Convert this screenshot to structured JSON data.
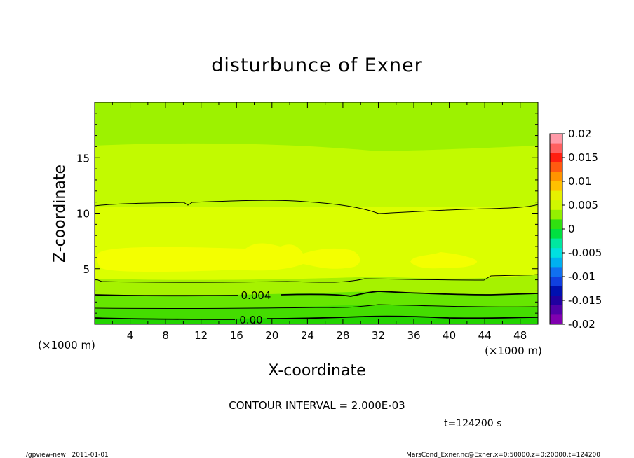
{
  "chart_data": {
    "type": "heatmap",
    "title": "disturbunce of Exner",
    "xlabel": "X-coordinate",
    "ylabel": "Z-coordinate",
    "x_unit": "(×1000 m)",
    "x_unit_right": "(×1000 m)",
    "xlim": [
      0,
      50
    ],
    "ylim": [
      0,
      20
    ],
    "xticks": [
      4,
      8,
      12,
      16,
      20,
      24,
      28,
      32,
      36,
      40,
      44,
      48
    ],
    "yticks": [
      5,
      10,
      15
    ],
    "contour_labels": [
      "0.004",
      "0.00"
    ],
    "contour_interval_text": "CONTOUR INTERVAL = 2.000E-03",
    "time_text": "t=124200 s",
    "footer_left": "./gpview-new   2011-01-01",
    "footer_right": "MarsCond_Exner.nc@Exner,x=0:50000,z=0:20000,t=124200",
    "colorbar": {
      "ticks": [
        "0.02",
        "0.015",
        "0.01",
        "0.005",
        "0",
        "-0.005",
        "-0.01",
        "-0.015",
        "-0.02"
      ],
      "range": [
        -0.02,
        0.02
      ],
      "bands": [
        "#ff9aa8",
        "#ff6060",
        "#ff1e10",
        "#ff5a10",
        "#ff9400",
        "#ffc000",
        "#e6f000",
        "#d0f800",
        "#94f000",
        "#30e010",
        "#00e040",
        "#00e8a0",
        "#00e0e0",
        "#00b0f0",
        "#1070f0",
        "#1040e0",
        "#0010b0",
        "#2000a0",
        "#5000a8",
        "#8000b0"
      ]
    },
    "levels": [
      {
        "zmin": 0,
        "zmax": 0.5,
        "value": 0.0,
        "color": "#33dd00"
      },
      {
        "zmin": 0.5,
        "zmax": 1.4,
        "value": 0.001,
        "color": "#55e600"
      },
      {
        "zmin": 1.4,
        "zmax": 2.6,
        "value": 0.002,
        "color": "#77ee00"
      },
      {
        "zmin": 2.6,
        "zmax": 3.8,
        "value": 0.003,
        "color": "#99f000"
      },
      {
        "zmin": 3.8,
        "zmax": 10.5,
        "value": 0.005,
        "color": "#dbff00"
      },
      {
        "zmin": 10.5,
        "zmax": 16.0,
        "value": 0.004,
        "color": "#c2fa00"
      },
      {
        "zmin": 16.0,
        "zmax": 20,
        "value": 0.002,
        "color": "#a0f200"
      }
    ],
    "contours": [
      {
        "value": 0.0,
        "z": 0.4
      },
      {
        "value": 0.001,
        "z": 1.4
      },
      {
        "value": 0.002,
        "z": 2.4
      },
      {
        "value": 0.003,
        "z": 3.8
      },
      {
        "value": 0.005,
        "z": 10.8
      }
    ]
  }
}
